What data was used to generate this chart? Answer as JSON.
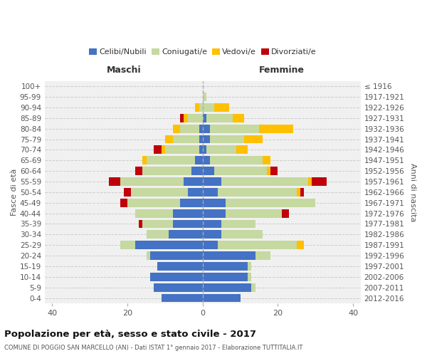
{
  "age_groups": [
    "0-4",
    "5-9",
    "10-14",
    "15-19",
    "20-24",
    "25-29",
    "30-34",
    "35-39",
    "40-44",
    "45-49",
    "50-54",
    "55-59",
    "60-64",
    "65-69",
    "70-74",
    "75-79",
    "80-84",
    "85-89",
    "90-94",
    "95-99",
    "100+"
  ],
  "birth_years": [
    "2012-2016",
    "2007-2011",
    "2002-2006",
    "1997-2001",
    "1992-1996",
    "1987-1991",
    "1982-1986",
    "1977-1981",
    "1972-1976",
    "1967-1971",
    "1962-1966",
    "1957-1961",
    "1952-1956",
    "1947-1951",
    "1942-1946",
    "1937-1941",
    "1932-1936",
    "1927-1931",
    "1922-1926",
    "1917-1921",
    "≤ 1916"
  ],
  "male_celibi": [
    11,
    13,
    14,
    12,
    14,
    18,
    9,
    8,
    8,
    6,
    4,
    5,
    3,
    2,
    1,
    1,
    1,
    0,
    0,
    0,
    0
  ],
  "male_coniugati": [
    0,
    0,
    0,
    0,
    1,
    4,
    6,
    8,
    10,
    14,
    15,
    17,
    13,
    13,
    9,
    7,
    5,
    4,
    1,
    0,
    0
  ],
  "male_vedovi": [
    0,
    0,
    0,
    0,
    0,
    0,
    0,
    0,
    0,
    0,
    0,
    0,
    0,
    1,
    1,
    2,
    2,
    1,
    1,
    0,
    0
  ],
  "male_divorziati": [
    0,
    0,
    0,
    0,
    0,
    0,
    0,
    1,
    0,
    2,
    2,
    3,
    2,
    0,
    2,
    0,
    0,
    1,
    0,
    0,
    0
  ],
  "female_celibi": [
    10,
    13,
    12,
    12,
    14,
    4,
    5,
    5,
    6,
    6,
    4,
    5,
    3,
    2,
    1,
    2,
    2,
    1,
    0,
    0,
    0
  ],
  "female_coniugati": [
    0,
    1,
    1,
    1,
    4,
    21,
    11,
    9,
    15,
    24,
    21,
    23,
    14,
    14,
    8,
    9,
    13,
    7,
    3,
    1,
    0
  ],
  "female_vedovi": [
    0,
    0,
    0,
    0,
    0,
    2,
    0,
    0,
    0,
    0,
    1,
    1,
    1,
    2,
    3,
    5,
    9,
    3,
    4,
    0,
    0
  ],
  "female_divorziati": [
    0,
    0,
    0,
    0,
    0,
    0,
    0,
    0,
    2,
    0,
    1,
    4,
    2,
    0,
    0,
    0,
    0,
    0,
    0,
    0,
    0
  ],
  "colors": {
    "celibi": "#4472c4",
    "coniugati": "#c5d9a0",
    "vedovi": "#ffc000",
    "divorziati": "#c0000b"
  },
  "legend_labels": [
    "Celibi/Nubili",
    "Coniugati/e",
    "Vedovi/e",
    "Divorziati/e"
  ],
  "title": "Popolazione per età, sesso e stato civile - 2017",
  "subtitle": "COMUNE DI POGGIO SAN MARCELLO (AN) - Dati ISTAT 1° gennaio 2017 - Elaborazione TUTTITALIA.IT",
  "xlabel_left": "Maschi",
  "xlabel_right": "Femmine",
  "ylabel_left": "Fasce di età",
  "ylabel_right": "Anni di nascita",
  "xlim": 42,
  "bg_color": "#ffffff",
  "plot_bg": "#f0f0f0"
}
